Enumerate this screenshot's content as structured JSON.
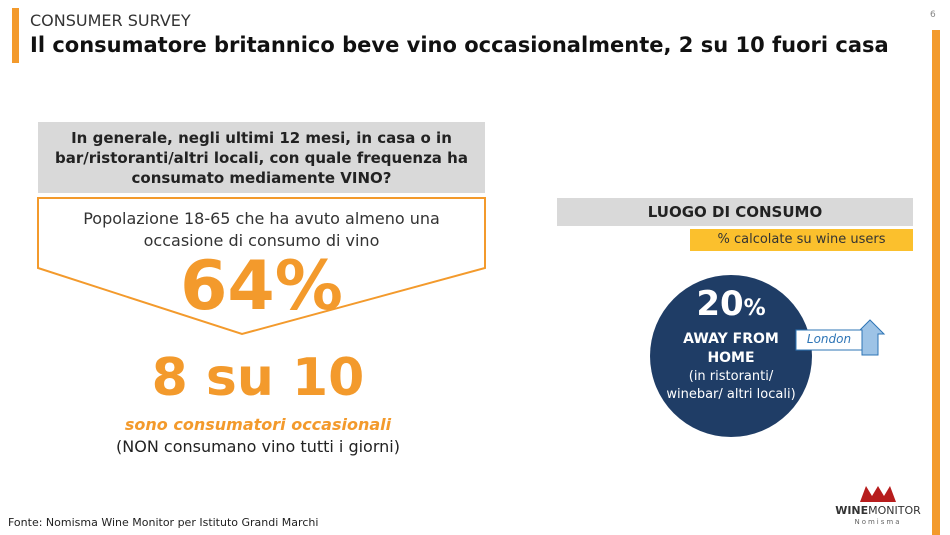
{
  "header": {
    "kicker": "CONSUMER SURVEY",
    "title": "Il consumatore britannico beve vino occasionalmente, 2 su 10 fuori casa",
    "page": "6"
  },
  "question": "In generale, negli ultimi 12 mesi, in casa o in bar/ristoranti/altri locali, con quale frequenza ha consumato mediamente VINO?",
  "left": {
    "population": "Popolazione 18-65 che ha avuto almeno una occasione di consumo di vino",
    "share": "64%",
    "ratio": "8 su 10",
    "highlight": "sono consumatori occasionali",
    "note": "(NON consumano vino tutti i giorni)"
  },
  "right": {
    "heading": "LUOGO DI CONSUMO",
    "basis": "% calcolate su wine users",
    "share": "20",
    "share_unit": "%",
    "label": "AWAY FROM HOME",
    "detail": "(in ristoranti/ winebar/ altri locali)",
    "tag": "London"
  },
  "footer": {
    "source": "Fonte: Nomisma Wine Monitor per Istituto Grandi Marchi",
    "logo_a": "WINE",
    "logo_b": "MONITOR",
    "logo_c": "Nomisma"
  }
}
